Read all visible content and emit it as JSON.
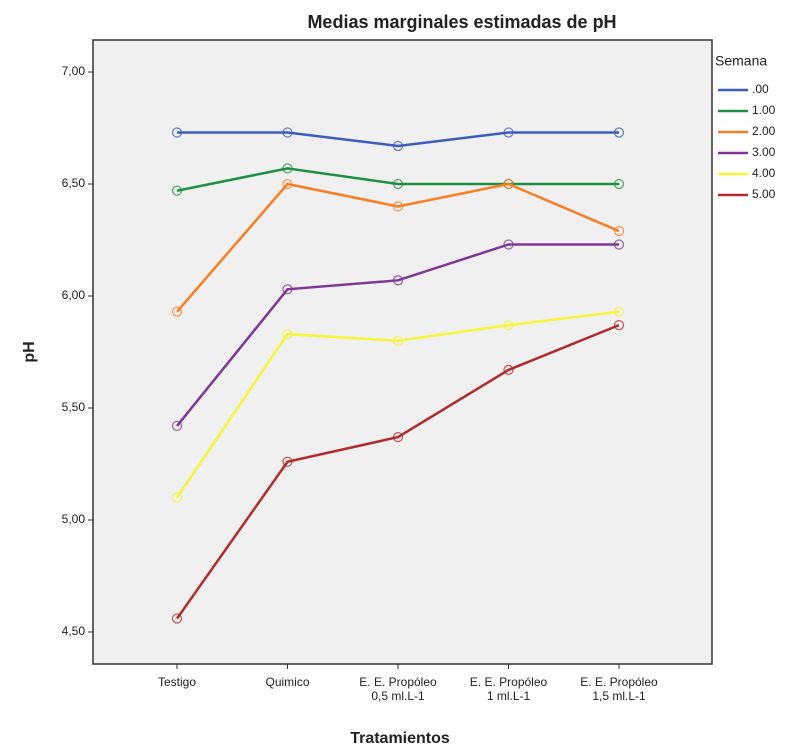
{
  "chart_data": {
    "type": "line",
    "title": "Medias marginales estimadas de pH",
    "x_label": "Tratamientos",
    "y_label": "pH",
    "legend_title": "Semana",
    "categories": [
      "Testigo",
      "Quimico",
      "E. E. Propóleo\n0,5 ml.L-1",
      "E. E. Propóleo\n1 ml.L-1",
      "E. E. Propóleo\n1,5 ml.L-1"
    ],
    "ylim": [
      4.357,
      7.143
    ],
    "yticks": [
      {
        "value": 4.5,
        "label": "4,50"
      },
      {
        "value": 5,
        "label": "5,00"
      },
      {
        "value": 5.5,
        "label": "5,50"
      },
      {
        "value": 6,
        "label": "6,00"
      },
      {
        "value": 6.5,
        "label": "6,50"
      },
      {
        "value": 7,
        "label": "7,00"
      }
    ],
    "series": [
      {
        "name": ".00",
        "color": "#3f5bbf",
        "values": [
          6.73,
          6.73,
          6.67,
          6.73,
          6.73
        ]
      },
      {
        "name": "1.00",
        "color": "#1f8f45",
        "values": [
          6.47,
          6.57,
          6.5,
          6.5,
          6.5
        ]
      },
      {
        "name": "2.00",
        "color": "#fa7d22",
        "values": [
          5.93,
          6.5,
          6.4,
          6.5,
          6.29
        ]
      },
      {
        "name": "3.00",
        "color": "#7f3795",
        "values": [
          5.42,
          6.03,
          6.07,
          6.23,
          6.23
        ]
      },
      {
        "name": "4.00",
        "color": "#f5f536",
        "values": [
          5.1,
          5.83,
          5.8,
          5.87,
          5.93
        ]
      },
      {
        "name": "5.00",
        "color": "#b02a2e",
        "values": [
          4.56,
          5.26,
          5.37,
          5.67,
          5.87
        ]
      }
    ]
  }
}
